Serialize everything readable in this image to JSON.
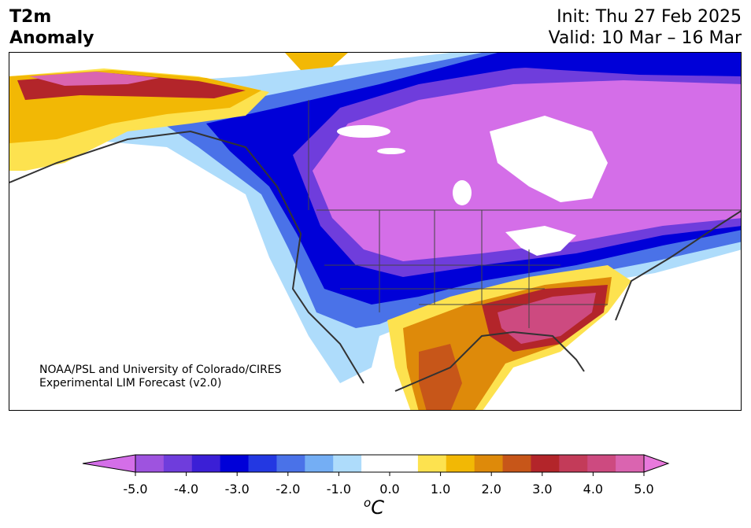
{
  "header": {
    "title_line1": "T2m",
    "title_line2": "Anomaly",
    "init": "Init: Thu 27 Feb 2025",
    "valid": "Valid: 10 Mar – 16 Mar"
  },
  "map": {
    "credit_line1": "NOAA/PSL and University of Colorado/CIRES",
    "credit_line2": "Experimental LIM Forecast (v2.0)"
  },
  "colorbar": {
    "colors": [
      "#d46ee8",
      "#9e53df",
      "#6f3ddc",
      "#3b1fd6",
      "#0000d8",
      "#2338e2",
      "#4a72e8",
      "#74aef4",
      "#aedcfb",
      "#ffffff",
      "#ffffff",
      "#fde24f",
      "#f2b805",
      "#de8a0a",
      "#c75619",
      "#b3252a",
      "#c33b59",
      "#cd4a80",
      "#da64b0",
      "#e879dc"
    ],
    "tick_labels": [
      "-5.0",
      "-4.0",
      "-3.0",
      "-2.0",
      "-1.0",
      "0.0",
      "1.0",
      "2.0",
      "3.0",
      "4.0",
      "5.0"
    ],
    "units_base": "C",
    "units_sup": "o"
  }
}
